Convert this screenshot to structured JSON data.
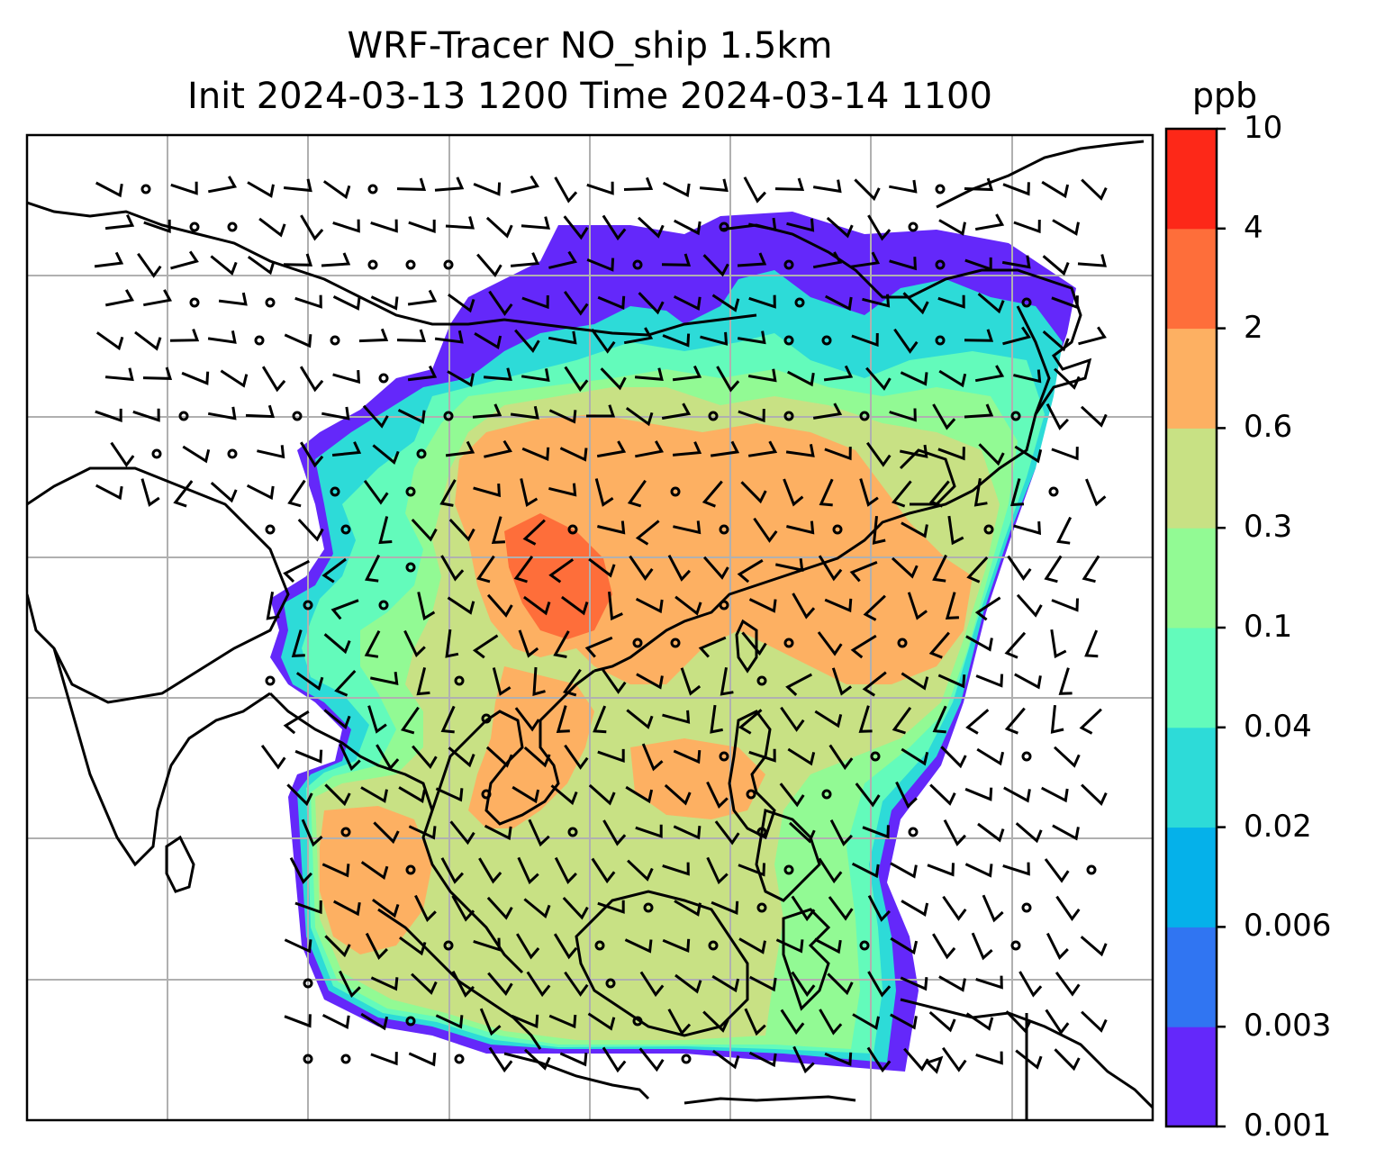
{
  "title": {
    "line1": "WRF-Tracer NO_ship 1.5km",
    "line2": "Init 2024-03-13 1200 Time 2024-03-14 1100"
  },
  "colorbar": {
    "unit": "ppb",
    "levels": [
      "0.001",
      "0.003",
      "0.006",
      "0.02",
      "0.04",
      "0.1",
      "0.3",
      "0.6",
      "2",
      "4",
      "10"
    ],
    "colors": [
      "#6428fa",
      "#3075f2",
      "#05b1ea",
      "#2ddbd8",
      "#63fbbb",
      "#92fa94",
      "#c8e184",
      "#fdb062",
      "#fe6e3a",
      "#fd2818"
    ]
  },
  "map": {
    "gridlines": true,
    "wind_barbs": true,
    "coastlines": true
  },
  "field_colors": {
    "purple": "#6428fa",
    "blue": "#3075f2",
    "cyan": "#2ddbd8",
    "aqua": "#63fbbb",
    "green": "#92fa94",
    "olive": "#c8e184",
    "orange": "#fdb062",
    "red": "#fe6e3a"
  }
}
